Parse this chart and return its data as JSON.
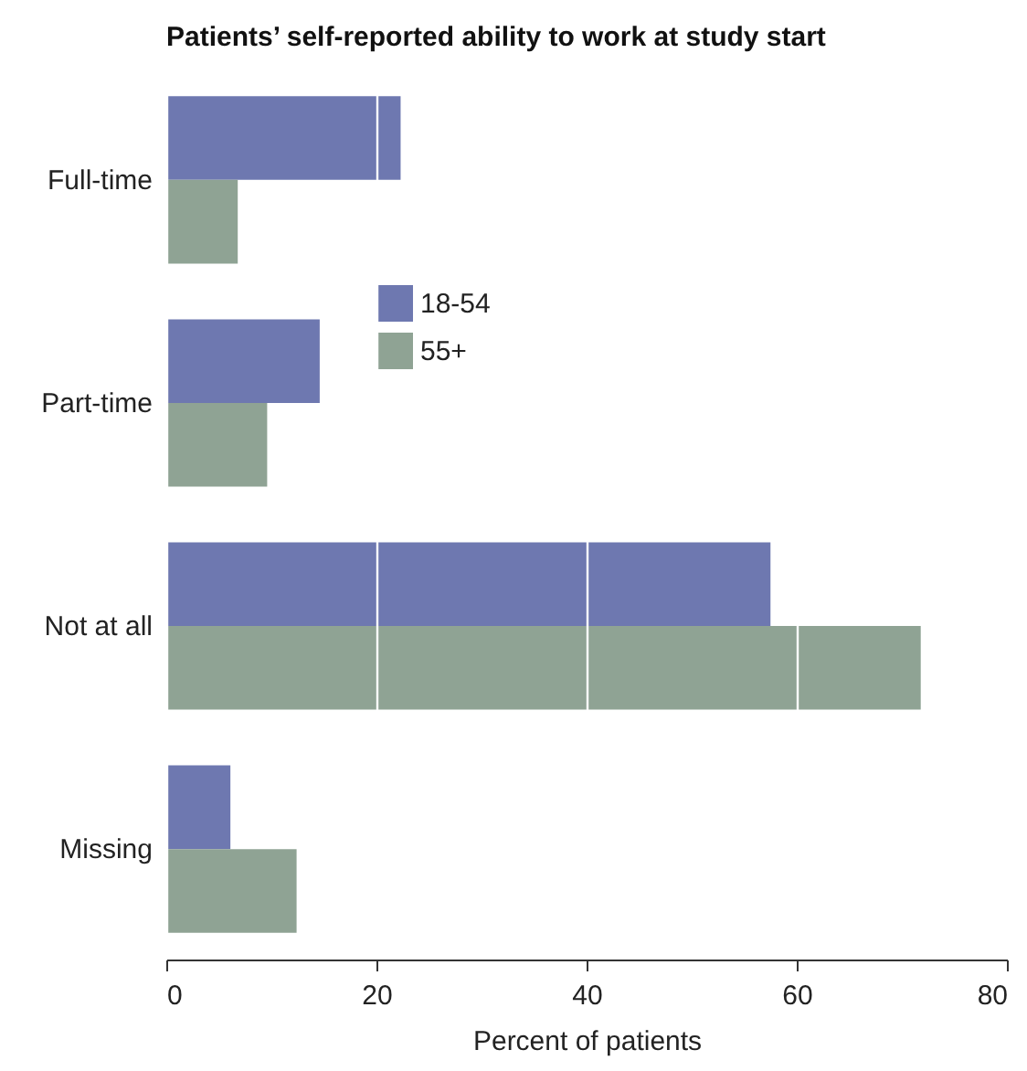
{
  "chart_data": {
    "type": "bar",
    "orientation": "horizontal",
    "title": "Patients’ self-reported ability to work at study start",
    "xlabel": "Percent of patients",
    "categories": [
      "Full-time",
      "Part-time",
      "Not at all",
      "Missing"
    ],
    "series": [
      {
        "name": "18-54",
        "color": "#6e78b0",
        "values": [
          22.3,
          14.6,
          57.5,
          6.1
        ]
      },
      {
        "name": "55+",
        "color": "#8fa394",
        "values": [
          6.8,
          9.6,
          71.8,
          12.4
        ]
      }
    ],
    "xlim": [
      0,
      80
    ],
    "xticks": [
      0,
      20,
      40,
      60,
      80
    ],
    "grid": "x",
    "legend": "top"
  }
}
